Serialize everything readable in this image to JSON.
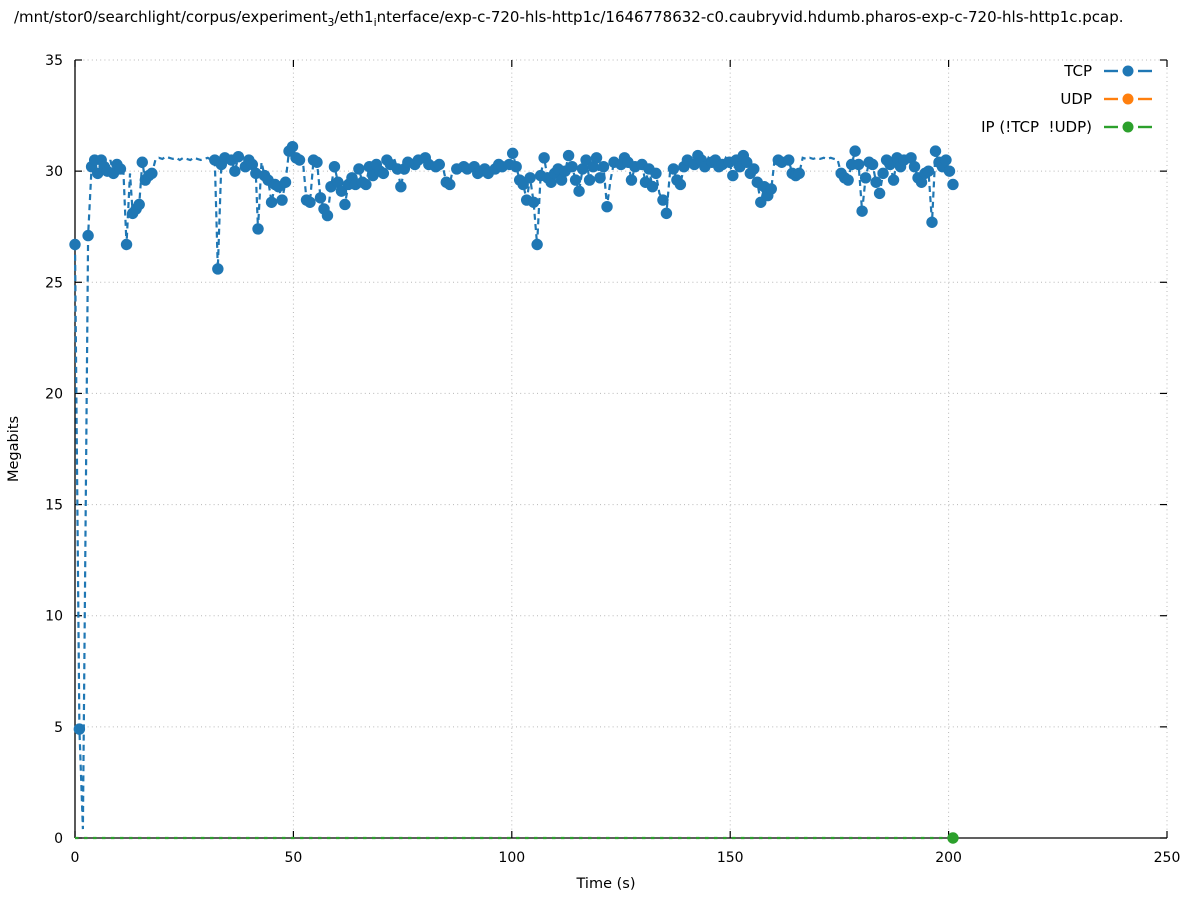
{
  "title": {
    "part1": "/mnt/stor0/searchlight/corpus/experiment",
    "sub1": "3",
    "part2": "/eth1",
    "sub2": "i",
    "part3": "nterface/exp-c-720-hls-http1c/1646778632-c0.caubryvid.hdumb.pharos-exp-c-720-hls-http1c.pcap."
  },
  "chart_data": {
    "type": "line",
    "title": "/mnt/stor0/searchlight/corpus/experiment₃/eth1ᵢnterface/exp-c-720-hls-http1c/1646778632-c0.caubryvid.hdumb.pharos-exp-c-720-hls-http1c.pcap.",
    "xlabel": "Time (s)",
    "ylabel": "Megabits",
    "xlim": [
      0,
      250
    ],
    "ylim": [
      0,
      35
    ],
    "xticks": [
      0,
      50,
      100,
      150,
      200,
      250
    ],
    "yticks": [
      0,
      5,
      10,
      15,
      20,
      25,
      30,
      35
    ],
    "grid": true,
    "grid_style": "dotted",
    "grid_color": "#b8b8b8",
    "legend_position": "top-right",
    "series": [
      {
        "name": "TCP",
        "color": "#1f77b4",
        "style": "dashed-line-with-circle-markers",
        "line_dash": "6 4.2",
        "points": [
          [
            0,
            26.7
          ],
          [
            1,
            4.9
          ],
          [
            1.8,
            0.4,
            0
          ],
          [
            3,
            27.1
          ],
          [
            3.8,
            30.2
          ],
          [
            4.5,
            30.5
          ],
          [
            5.2,
            29.9
          ],
          [
            6,
            30.5
          ],
          [
            6.7,
            30.2
          ],
          [
            7.4,
            30.0
          ],
          [
            8.1,
            30.5,
            0
          ],
          [
            8.8,
            29.9
          ],
          [
            9.6,
            30.3
          ],
          [
            10.4,
            30.1
          ],
          [
            11.1,
            29.9,
            0
          ],
          [
            11.8,
            26.7
          ],
          [
            12.6,
            29.9,
            0
          ],
          [
            13.2,
            28.1
          ],
          [
            14,
            28.3
          ],
          [
            14.7,
            28.5
          ],
          [
            15.4,
            30.4
          ],
          [
            16.1,
            29.6
          ],
          [
            16.9,
            29.8
          ],
          [
            17.6,
            29.9
          ],
          [
            18.4,
            30.5,
            0
          ],
          [
            19.2,
            30.6,
            0
          ],
          [
            20,
            30.55,
            0
          ],
          [
            20.8,
            30.65,
            0
          ],
          [
            21.6,
            30.6,
            0
          ],
          [
            22.4,
            30.55,
            0
          ],
          [
            23.2,
            30.6,
            0
          ],
          [
            24,
            30.5,
            0
          ],
          [
            24.8,
            30.6,
            0
          ],
          [
            25.6,
            30.55,
            0
          ],
          [
            26.4,
            30.5,
            0
          ],
          [
            27.2,
            30.6,
            0
          ],
          [
            28,
            30.55,
            0
          ],
          [
            28.8,
            30.5,
            0
          ],
          [
            29.6,
            30.55,
            0
          ],
          [
            30.4,
            30.6,
            0
          ],
          [
            31.2,
            30.5,
            0
          ],
          [
            32,
            30.5
          ],
          [
            32.7,
            25.6
          ],
          [
            33.5,
            30.3
          ],
          [
            34.3,
            30.6
          ],
          [
            35,
            30.7,
            0
          ],
          [
            35.8,
            30.5
          ],
          [
            36.6,
            30.0
          ],
          [
            37.4,
            30.65
          ],
          [
            38.2,
            30.6,
            0
          ],
          [
            39,
            30.2
          ],
          [
            39.8,
            30.5
          ],
          [
            40.6,
            30.3
          ],
          [
            41.4,
            29.9
          ],
          [
            41.9,
            27.4
          ],
          [
            42.7,
            30.4,
            0
          ],
          [
            43.4,
            29.8
          ],
          [
            44.2,
            29.6
          ],
          [
            45,
            28.6
          ],
          [
            45.8,
            29.4
          ],
          [
            46.6,
            29.3
          ],
          [
            47.4,
            28.7
          ],
          [
            48.2,
            29.5
          ],
          [
            49,
            30.9
          ],
          [
            49.8,
            31.1
          ],
          [
            50.6,
            30.6
          ],
          [
            51.4,
            30.5
          ],
          [
            52.2,
            30.4,
            0
          ],
          [
            53,
            28.7
          ],
          [
            53.8,
            28.6
          ],
          [
            54.6,
            30.5
          ],
          [
            55.4,
            30.4
          ],
          [
            56.2,
            28.8
          ],
          [
            57,
            28.3
          ],
          [
            57.8,
            28.0
          ],
          [
            58.6,
            29.3
          ],
          [
            59.4,
            30.2
          ],
          [
            60.2,
            29.5
          ],
          [
            61,
            29.1
          ],
          [
            61.8,
            28.5
          ],
          [
            62.6,
            29.4
          ],
          [
            63.4,
            29.7
          ],
          [
            64.2,
            29.4
          ],
          [
            65,
            30.1
          ],
          [
            65.8,
            29.5
          ],
          [
            66.6,
            29.4
          ],
          [
            67.4,
            30.2
          ],
          [
            68.2,
            29.8
          ],
          [
            69,
            30.3
          ],
          [
            69.8,
            30.0
          ],
          [
            70.6,
            29.9
          ],
          [
            71.4,
            30.5
          ],
          [
            72.2,
            30.3
          ],
          [
            73,
            30.6,
            0
          ],
          [
            73.8,
            30.1
          ],
          [
            74.6,
            29.3
          ],
          [
            75.4,
            30.1
          ],
          [
            76.2,
            30.4
          ],
          [
            77,
            30.6,
            0
          ],
          [
            77.8,
            30.3
          ],
          [
            78.6,
            30.5
          ],
          [
            79.4,
            30.4,
            0
          ],
          [
            80.2,
            30.6
          ],
          [
            81,
            30.3
          ],
          [
            81.8,
            30.4,
            0
          ],
          [
            82.6,
            30.2
          ],
          [
            83.4,
            30.3
          ],
          [
            84.2,
            30.2,
            0
          ],
          [
            85,
            29.5
          ],
          [
            85.8,
            29.4
          ],
          [
            86.6,
            30.2,
            0
          ],
          [
            87.4,
            30.1
          ],
          [
            88.2,
            30.3,
            0
          ],
          [
            89,
            30.2
          ],
          [
            89.8,
            30.1
          ],
          [
            90.6,
            30.3,
            0
          ],
          [
            91.4,
            30.2
          ],
          [
            92.2,
            29.9
          ],
          [
            93,
            30.0
          ],
          [
            93.8,
            30.1
          ],
          [
            94.6,
            29.9
          ],
          [
            95.4,
            30.2,
            0
          ],
          [
            96.2,
            30.1
          ],
          [
            97,
            30.3
          ],
          [
            97.8,
            30.2
          ],
          [
            98.6,
            30.4,
            0
          ],
          [
            99.4,
            30.3
          ],
          [
            100.2,
            30.8
          ],
          [
            101,
            30.2
          ],
          [
            101.8,
            29.6
          ],
          [
            102.6,
            29.4
          ],
          [
            103.4,
            28.7
          ],
          [
            104.2,
            29.7
          ],
          [
            105,
            28.6
          ],
          [
            105.8,
            26.7
          ],
          [
            106.6,
            29.8
          ],
          [
            107.4,
            30.6
          ],
          [
            108.2,
            29.7
          ],
          [
            109,
            29.5
          ],
          [
            109.8,
            29.9
          ],
          [
            110.6,
            30.1
          ],
          [
            111.4,
            29.6
          ],
          [
            112.2,
            30.0
          ],
          [
            113,
            30.7
          ],
          [
            113.8,
            30.2
          ],
          [
            114.6,
            29.6
          ],
          [
            115.4,
            29.1
          ],
          [
            116.2,
            30.1
          ],
          [
            117,
            30.5
          ],
          [
            117.8,
            29.6
          ],
          [
            118.6,
            30.2
          ],
          [
            119.4,
            30.6
          ],
          [
            120.2,
            29.7
          ],
          [
            121,
            30.2
          ],
          [
            121.8,
            28.4
          ],
          [
            122.6,
            29.6,
            0
          ],
          [
            123.4,
            30.4
          ],
          [
            124.2,
            30.5,
            0
          ],
          [
            125,
            30.3
          ],
          [
            125.8,
            30.6
          ],
          [
            126.6,
            30.4
          ],
          [
            127.4,
            29.6
          ],
          [
            128.2,
            30.2
          ],
          [
            129,
            30.4,
            0
          ],
          [
            129.8,
            30.3
          ],
          [
            130.6,
            29.5
          ],
          [
            131.4,
            30.1
          ],
          [
            132.2,
            29.3
          ],
          [
            133,
            29.9
          ],
          [
            133.8,
            29.0,
            0
          ],
          [
            134.6,
            28.7
          ],
          [
            135.4,
            28.1
          ],
          [
            136.2,
            29.9,
            0
          ],
          [
            137,
            30.1
          ],
          [
            137.8,
            29.6
          ],
          [
            138.6,
            29.4
          ],
          [
            139.4,
            30.2
          ],
          [
            140.2,
            30.5
          ],
          [
            141,
            30.6,
            0
          ],
          [
            141.8,
            30.3
          ],
          [
            142.6,
            30.7
          ],
          [
            143.4,
            30.5
          ],
          [
            144.2,
            30.2
          ],
          [
            145,
            30.6,
            0
          ],
          [
            145.8,
            30.4
          ],
          [
            146.6,
            30.5
          ],
          [
            147.4,
            30.2
          ],
          [
            148.2,
            30.3
          ],
          [
            149,
            30.6,
            0
          ],
          [
            149.8,
            30.4
          ],
          [
            150.6,
            29.8
          ],
          [
            151.4,
            30.5
          ],
          [
            152.2,
            30.2
          ],
          [
            153,
            30.7
          ],
          [
            153.8,
            30.4
          ],
          [
            154.6,
            29.9
          ],
          [
            155.4,
            30.1
          ],
          [
            156.2,
            29.5
          ],
          [
            157,
            28.6
          ],
          [
            157.8,
            29.3
          ],
          [
            158.6,
            28.9
          ],
          [
            159.4,
            29.2
          ],
          [
            160.2,
            30.6,
            0
          ],
          [
            161,
            30.5
          ],
          [
            161.8,
            30.4
          ],
          [
            162.6,
            30.6,
            0
          ],
          [
            163.4,
            30.5
          ],
          [
            164.2,
            29.9
          ],
          [
            165,
            29.8
          ],
          [
            165.8,
            29.9
          ],
          [
            166.6,
            30.6,
            0
          ],
          [
            167.4,
            30.55,
            0
          ],
          [
            168.2,
            30.6,
            0
          ],
          [
            169,
            30.55,
            0
          ],
          [
            169.8,
            30.6,
            0
          ],
          [
            170.6,
            30.55,
            0
          ],
          [
            171.4,
            30.6,
            0
          ],
          [
            172.2,
            30.55,
            0
          ],
          [
            173,
            30.6,
            0
          ],
          [
            173.8,
            30.55,
            0
          ],
          [
            174.6,
            30.5,
            0
          ],
          [
            175.4,
            29.9
          ],
          [
            176.2,
            29.7
          ],
          [
            177,
            29.6
          ],
          [
            177.8,
            30.3
          ],
          [
            178.6,
            30.9
          ],
          [
            179.4,
            30.3
          ],
          [
            180.2,
            28.2
          ],
          [
            181,
            29.7
          ],
          [
            181.8,
            30.4
          ],
          [
            182.6,
            30.3
          ],
          [
            183.4,
            29.5
          ],
          [
            184.2,
            29.0
          ],
          [
            185,
            29.9
          ],
          [
            185.8,
            30.5
          ],
          [
            186.6,
            30.3
          ],
          [
            187.4,
            29.6
          ],
          [
            188.2,
            30.6
          ],
          [
            189,
            30.2
          ],
          [
            189.8,
            30.5
          ],
          [
            190.6,
            30.4,
            0
          ],
          [
            191.4,
            30.6
          ],
          [
            192.2,
            30.2
          ],
          [
            193,
            29.7
          ],
          [
            193.8,
            29.5
          ],
          [
            194.6,
            29.9
          ],
          [
            195.4,
            30.0
          ],
          [
            196.2,
            27.7
          ],
          [
            197,
            30.9
          ],
          [
            197.8,
            30.4
          ],
          [
            198.6,
            30.2
          ],
          [
            199.4,
            30.5
          ],
          [
            200.2,
            30.0
          ],
          [
            201,
            29.4
          ]
        ]
      },
      {
        "name": "UDP",
        "color": "#ff7f0e",
        "style": "dashed-line-with-circle-markers",
        "line_dash": "6 4.2",
        "points": []
      },
      {
        "name": "IP (!TCP  !UDP)",
        "color": "#2ca02c",
        "style": "dashed-line-with-circle-markers",
        "line_dash": "3.5 5.5",
        "points": [
          [
            0,
            0,
            0
          ],
          [
            201,
            0
          ]
        ]
      }
    ]
  }
}
